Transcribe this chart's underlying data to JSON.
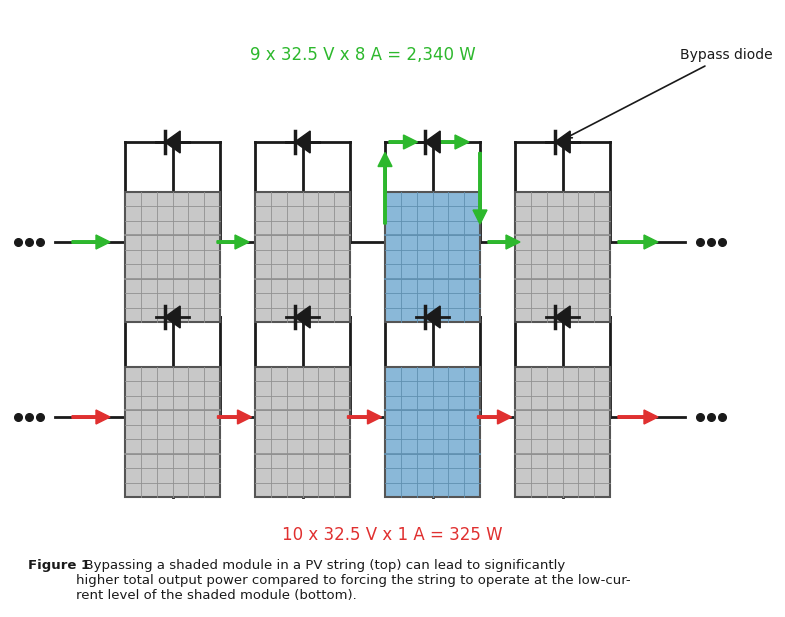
{
  "bg_color": "#ffffff",
  "fig_width": 7.85,
  "fig_height": 6.17,
  "green": "#2db82d",
  "red": "#e03030",
  "black": "#1a1a1a",
  "panel_gray_bg": "#c8c8c8",
  "panel_blue_bg": "#8ab8d8",
  "panel_grid_gray": "#909090",
  "panel_grid_blue": "#6090b0",
  "wire_color": "#1a1a1a",
  "top_label": "9 x 32.5 V x 8 A = 2,340 W",
  "bottom_label": "10 x 32.5 V x 1 A = 325 W",
  "caption_bold": "Figure 1",
  "caption_rest": "  Bypassing a shaded module in a PV string (top) can lead to significantly\nhigher total output power compared to forcing the string to operate at the low-cur-\nrent level of the shaded module (bottom).",
  "bypass_diode_label": "Bypass diode",
  "ncols_panel": 6,
  "nrows_panel": 9
}
